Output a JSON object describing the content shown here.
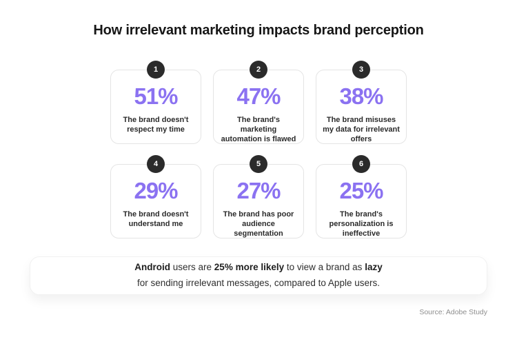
{
  "title": "How irrelevant marketing impacts brand perception",
  "colors": {
    "accent_purple": "#8B72F1",
    "badge_black": "#2B2B2B",
    "card_border": "#E4E4E4",
    "text_dark": "#232323",
    "source_gray": "#8E8E8E"
  },
  "cards": [
    {
      "number": "1",
      "value": "51%",
      "label": "The brand doesn't respect my time"
    },
    {
      "number": "2",
      "value": "47%",
      "label": "The brand's marketing automation is flawed"
    },
    {
      "number": "3",
      "value": "38%",
      "label": "The brand misuses my data for irrelevant offers"
    },
    {
      "number": "4",
      "value": "29%",
      "label": "The brand doesn't understand me"
    },
    {
      "number": "5",
      "value": "27%",
      "label": "The brand has poor audience segmentation"
    },
    {
      "number": "6",
      "value": "25%",
      "label": "The brand's personalization is ineffective"
    }
  ],
  "footnote": {
    "bold1": "Android",
    "text1": " users are ",
    "bold2": "25% more likely",
    "text2": " to view a brand as ",
    "bold3": "lazy",
    "line2": "for sending irrelevant messages, compared to Apple users."
  },
  "source": "Source: Adobe Study",
  "chart_data": {
    "type": "table",
    "title": "How irrelevant marketing impacts brand perception",
    "categories": [
      "The brand doesn't respect my time",
      "The brand's marketing automation is flawed",
      "The brand misuses my data for irrelevant offers",
      "The brand doesn't understand me",
      "The brand has poor audience segmentation",
      "The brand's personalization is ineffective"
    ],
    "values": [
      51,
      47,
      38,
      29,
      27,
      25
    ],
    "unit": "%",
    "annotation": "Android users are 25% more likely to view a brand as lazy for sending irrelevant messages, compared to Apple users.",
    "source": "Source: Adobe Study"
  }
}
